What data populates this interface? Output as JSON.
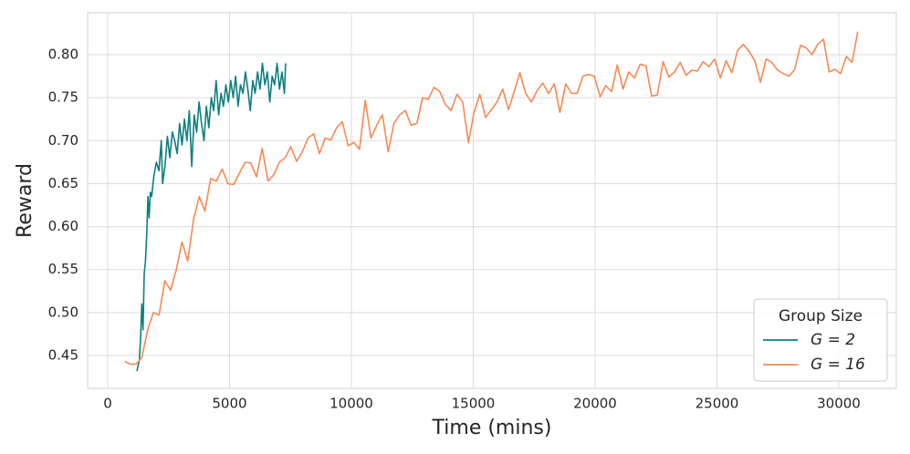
{
  "chart_data": {
    "type": "line",
    "xlabel": "Time (mins)",
    "ylabel": "Reward",
    "xlim": [
      -824,
      32360
    ],
    "ylim": [
      0.4118,
      0.8488
    ],
    "xticks": [
      0,
      5000,
      10000,
      15000,
      20000,
      25000,
      30000
    ],
    "yticks": [
      0.45,
      {
        "value": 0.5,
        "label": "0.50"
      },
      0.55,
      {
        "value": 0.6,
        "label": "0.60"
      },
      0.65,
      {
        "value": 0.7,
        "label": "0.70"
      },
      0.75,
      {
        "value": 0.8,
        "label": "0.80"
      }
    ],
    "grid": true,
    "legend_title": "Group Size",
    "legend_position": "lower right",
    "series": [
      {
        "name": "G = 2",
        "color": "#0f7f7f",
        "x": [
          1200,
          1300,
          1350,
          1400,
          1450,
          1500,
          1550,
          1600,
          1650,
          1700,
          1750,
          1800,
          1900,
          2000,
          2100,
          2200,
          2250,
          2350,
          2450,
          2550,
          2650,
          2750,
          2850,
          2950,
          3050,
          3150,
          3250,
          3350,
          3450,
          3550,
          3650,
          3750,
          3850,
          3950,
          4050,
          4150,
          4250,
          4350,
          4450,
          4550,
          4650,
          4750,
          4850,
          4950,
          5050,
          5150,
          5250,
          5350,
          5450,
          5550,
          5650,
          5750,
          5850,
          5950,
          6050,
          6150,
          6250,
          6350,
          6450,
          6550,
          6650,
          6750,
          6850,
          6950,
          7050,
          7150,
          7250,
          7300
        ],
        "values": [
          0.432,
          0.445,
          0.47,
          0.51,
          0.48,
          0.545,
          0.56,
          0.59,
          0.635,
          0.61,
          0.64,
          0.635,
          0.66,
          0.675,
          0.665,
          0.7,
          0.65,
          0.67,
          0.705,
          0.68,
          0.71,
          0.7,
          0.685,
          0.72,
          0.695,
          0.725,
          0.7,
          0.735,
          0.67,
          0.73,
          0.71,
          0.745,
          0.72,
          0.7,
          0.74,
          0.715,
          0.75,
          0.735,
          0.77,
          0.73,
          0.755,
          0.74,
          0.765,
          0.745,
          0.77,
          0.75,
          0.775,
          0.74,
          0.765,
          0.755,
          0.78,
          0.76,
          0.735,
          0.77,
          0.755,
          0.78,
          0.76,
          0.79,
          0.765,
          0.78,
          0.745,
          0.775,
          0.765,
          0.79,
          0.76,
          0.78,
          0.755,
          0.79
        ]
      },
      {
        "name": "G = 16",
        "color": "#f58a55",
        "x": [
          700,
          935,
          1170,
          1405,
          1640,
          1875,
          2110,
          2345,
          2580,
          2815,
          3050,
          3285,
          3520,
          3755,
          3990,
          4225,
          4460,
          4695,
          4930,
          5165,
          5400,
          5635,
          5870,
          6105,
          6340,
          6575,
          6810,
          7045,
          7280,
          7515,
          7750,
          7985,
          8220,
          8455,
          8690,
          8925,
          9160,
          9395,
          9630,
          9865,
          10100,
          10335,
          10570,
          10805,
          11040,
          11275,
          11510,
          11745,
          11980,
          12215,
          12450,
          12685,
          12920,
          13155,
          13390,
          13625,
          13860,
          14095,
          14330,
          14565,
          14800,
          15035,
          15270,
          15505,
          15740,
          15975,
          16210,
          16445,
          16680,
          16915,
          17150,
          17385,
          17620,
          17855,
          18090,
          18325,
          18560,
          18795,
          19030,
          19265,
          19500,
          19735,
          19970,
          20205,
          20440,
          20675,
          20910,
          21145,
          21380,
          21615,
          21850,
          22085,
          22320,
          22555,
          22790,
          23025,
          23260,
          23495,
          23730,
          23965,
          24200,
          24435,
          24670,
          24905,
          25140,
          25375,
          25610,
          25845,
          26080,
          26315,
          26550,
          26785,
          27020,
          27255,
          27490,
          27725,
          27960,
          28195,
          28430,
          28665,
          28900,
          29135,
          29370,
          29605,
          29840,
          30075,
          30310,
          30545,
          30780
        ],
        "values": [
          0.443,
          0.44,
          0.44,
          0.448,
          0.48,
          0.5,
          0.497,
          0.537,
          0.526,
          0.55,
          0.582,
          0.56,
          0.608,
          0.635,
          0.618,
          0.656,
          0.653,
          0.667,
          0.65,
          0.649,
          0.662,
          0.675,
          0.674,
          0.658,
          0.691,
          0.653,
          0.66,
          0.675,
          0.68,
          0.693,
          0.676,
          0.687,
          0.703,
          0.708,
          0.685,
          0.703,
          0.701,
          0.715,
          0.722,
          0.694,
          0.698,
          0.69,
          0.747,
          0.703,
          0.718,
          0.73,
          0.687,
          0.72,
          0.73,
          0.735,
          0.718,
          0.72,
          0.75,
          0.748,
          0.762,
          0.757,
          0.742,
          0.735,
          0.754,
          0.745,
          0.698,
          0.733,
          0.754,
          0.727,
          0.736,
          0.745,
          0.76,
          0.736,
          0.757,
          0.779,
          0.755,
          0.745,
          0.758,
          0.767,
          0.755,
          0.766,
          0.733,
          0.766,
          0.755,
          0.755,
          0.775,
          0.777,
          0.775,
          0.751,
          0.764,
          0.757,
          0.788,
          0.76,
          0.78,
          0.773,
          0.789,
          0.787,
          0.752,
          0.753,
          0.792,
          0.774,
          0.78,
          0.791,
          0.776,
          0.782,
          0.781,
          0.792,
          0.786,
          0.795,
          0.773,
          0.793,
          0.779,
          0.805,
          0.812,
          0.804,
          0.793,
          0.768,
          0.795,
          0.791,
          0.782,
          0.778,
          0.775,
          0.783,
          0.811,
          0.808,
          0.8,
          0.812,
          0.818,
          0.78,
          0.783,
          0.778,
          0.798,
          0.791,
          0.827
        ]
      }
    ]
  }
}
